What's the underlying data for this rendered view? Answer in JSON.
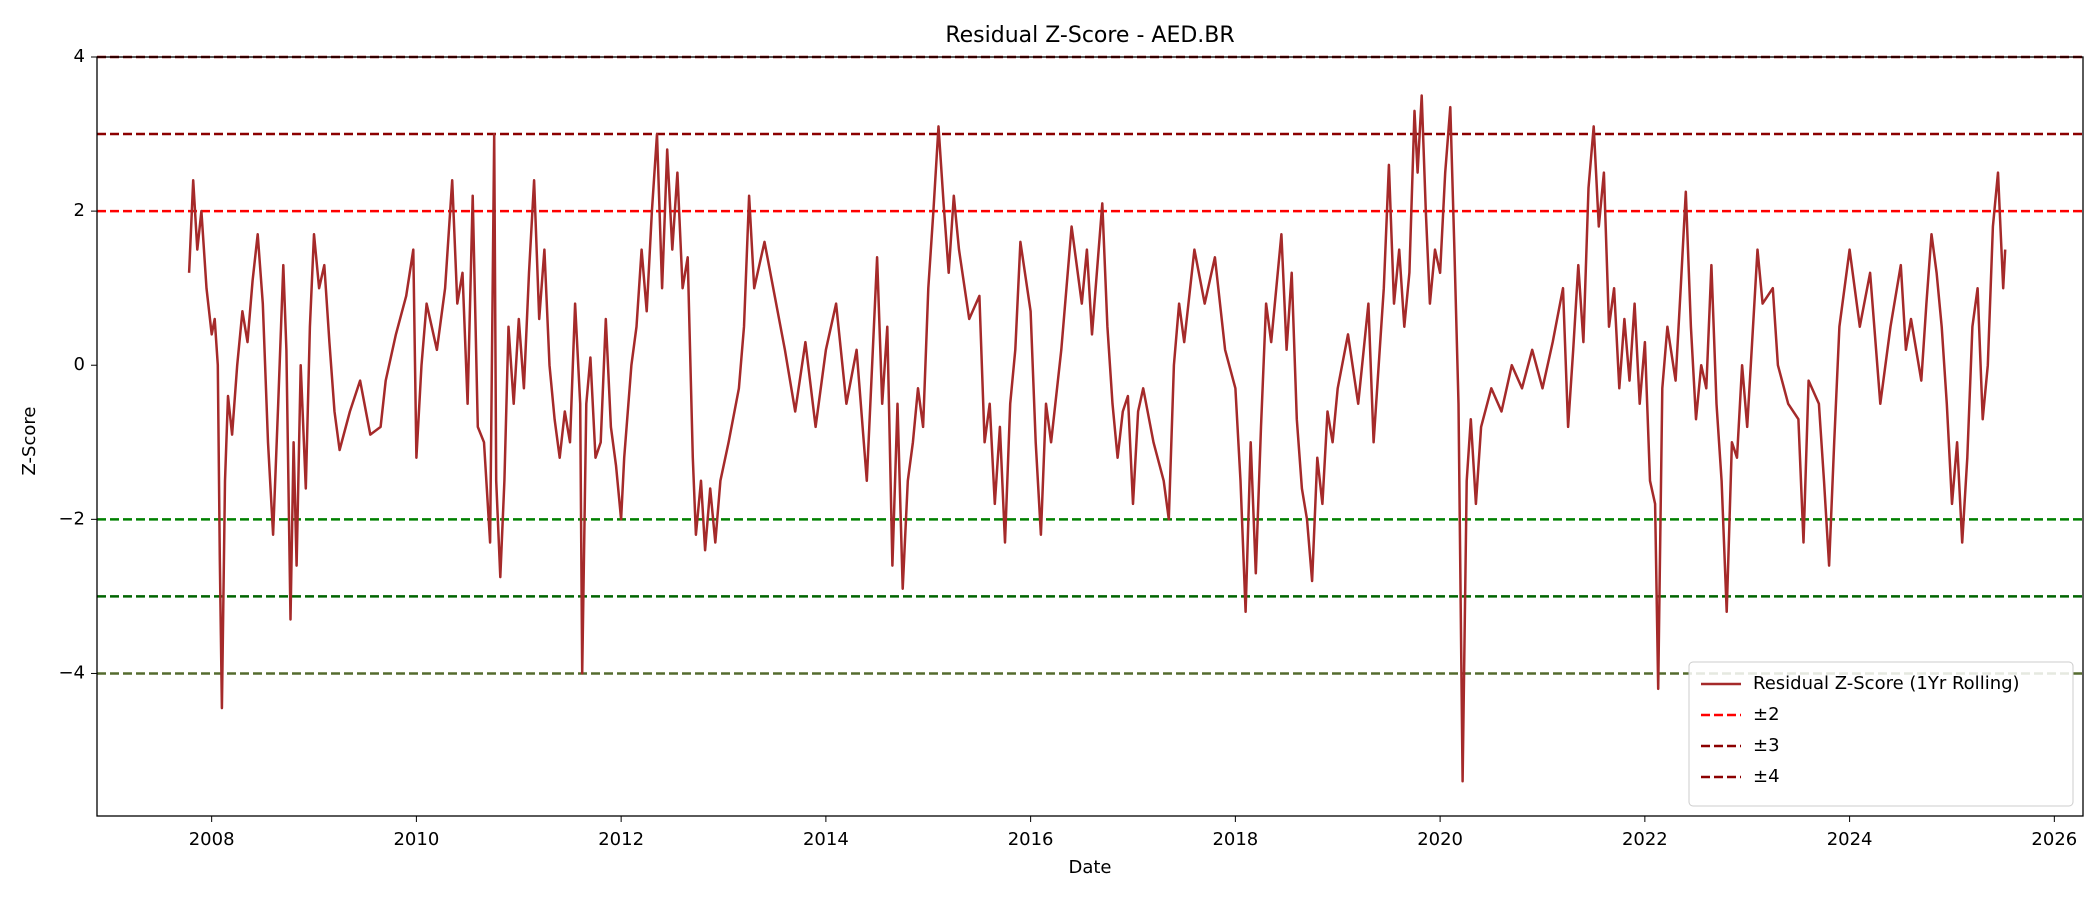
{
  "chart_data": {
    "type": "line",
    "title": "Residual Z-Score - AED.BR",
    "xlabel": "Date",
    "ylabel": "Z-Score",
    "xlim": [
      2006.88,
      2026.28
    ],
    "xticks": [
      2008,
      2010,
      2012,
      2014,
      2016,
      2018,
      2020,
      2022,
      2024,
      2026
    ],
    "ylim": [
      -5.85,
      4
    ],
    "yticks": [
      {
        "value": -4,
        "label": "−4"
      },
      {
        "value": -2,
        "label": "−2"
      },
      0,
      2,
      4
    ],
    "legend": "lower right",
    "x": [
      2007.78,
      2007.82,
      2007.86,
      2007.9,
      2007.95,
      2008.0,
      2008.03,
      2008.06,
      2008.08,
      2008.1,
      2008.13,
      2008.16,
      2008.2,
      2008.25,
      2008.3,
      2008.35,
      2008.4,
      2008.45,
      2008.5,
      2008.55,
      2008.6,
      2008.65,
      2008.7,
      2008.73,
      2008.77,
      2008.8,
      2008.83,
      2008.87,
      2008.92,
      2008.96,
      2009.0,
      2009.05,
      2009.1,
      2009.15,
      2009.2,
      2009.25,
      2009.35,
      2009.45,
      2009.55,
      2009.65,
      2009.7,
      2009.8,
      2009.9,
      2009.97,
      2010.0,
      2010.05,
      2010.1,
      2010.2,
      2010.28,
      2010.35,
      2010.4,
      2010.45,
      2010.5,
      2010.55,
      2010.6,
      2010.66,
      2010.72,
      2010.76,
      2010.78,
      2010.82,
      2010.86,
      2010.9,
      2010.95,
      2011.0,
      2011.05,
      2011.1,
      2011.15,
      2011.2,
      2011.25,
      2011.3,
      2011.35,
      2011.4,
      2011.45,
      2011.5,
      2011.55,
      2011.6,
      2011.62,
      2011.66,
      2011.7,
      2011.75,
      2011.8,
      2011.85,
      2011.9,
      2011.95,
      2012.0,
      2012.03,
      2012.1,
      2012.15,
      2012.2,
      2012.25,
      2012.3,
      2012.35,
      2012.4,
      2012.45,
      2012.5,
      2012.55,
      2012.6,
      2012.65,
      2012.7,
      2012.73,
      2012.78,
      2012.82,
      2012.87,
      2012.92,
      2012.97,
      2013.05,
      2013.15,
      2013.2,
      2013.25,
      2013.3,
      2013.4,
      2013.5,
      2013.6,
      2013.7,
      2013.8,
      2013.9,
      2014.0,
      2014.1,
      2014.2,
      2014.3,
      2014.4,
      2014.5,
      2014.55,
      2014.6,
      2014.65,
      2014.7,
      2014.75,
      2014.8,
      2014.85,
      2014.9,
      2014.95,
      2015.0,
      2015.05,
      2015.1,
      2015.15,
      2015.2,
      2015.25,
      2015.3,
      2015.4,
      2015.5,
      2015.55,
      2015.6,
      2015.65,
      2015.7,
      2015.75,
      2015.8,
      2015.85,
      2015.9,
      2016.0,
      2016.05,
      2016.1,
      2016.15,
      2016.2,
      2016.3,
      2016.4,
      2016.5,
      2016.55,
      2016.6,
      2016.7,
      2016.75,
      2016.8,
      2016.85,
      2016.9,
      2016.95,
      2017.0,
      2017.05,
      2017.1,
      2017.2,
      2017.3,
      2017.35,
      2017.4,
      2017.45,
      2017.5,
      2017.6,
      2017.7,
      2017.8,
      2017.9,
      2018.0,
      2018.05,
      2018.1,
      2018.15,
      2018.2,
      2018.25,
      2018.3,
      2018.35,
      2018.45,
      2018.5,
      2018.55,
      2018.6,
      2018.65,
      2018.7,
      2018.75,
      2018.8,
      2018.85,
      2018.9,
      2018.95,
      2019.0,
      2019.1,
      2019.2,
      2019.3,
      2019.35,
      2019.4,
      2019.45,
      2019.5,
      2019.55,
      2019.6,
      2019.65,
      2019.7,
      2019.75,
      2019.78,
      2019.82,
      2019.86,
      2019.9,
      2019.95,
      2020.0,
      2020.05,
      2020.1,
      2020.14,
      2020.18,
      2020.22,
      2020.26,
      2020.3,
      2020.35,
      2020.4,
      2020.5,
      2020.6,
      2020.7,
      2020.8,
      2020.9,
      2021.0,
      2021.1,
      2021.2,
      2021.25,
      2021.3,
      2021.35,
      2021.4,
      2021.45,
      2021.5,
      2021.55,
      2021.6,
      2021.65,
      2021.7,
      2021.75,
      2021.8,
      2021.85,
      2021.9,
      2021.95,
      2022.0,
      2022.05,
      2022.1,
      2022.13,
      2022.17,
      2022.22,
      2022.3,
      2022.35,
      2022.4,
      2022.45,
      2022.5,
      2022.55,
      2022.6,
      2022.65,
      2022.7,
      2022.75,
      2022.8,
      2022.85,
      2022.9,
      2022.95,
      2023.0,
      2023.1,
      2023.15,
      2023.25,
      2023.3,
      2023.4,
      2023.5,
      2023.55,
      2023.6,
      2023.7,
      2023.75,
      2023.8,
      2023.85,
      2023.9,
      2024.0,
      2024.1,
      2024.2,
      2024.3,
      2024.4,
      2024.5,
      2024.55,
      2024.6,
      2024.7,
      2024.75,
      2024.8,
      2024.85,
      2024.9,
      2024.95,
      2025.0,
      2025.05,
      2025.1,
      2025.15,
      2025.2,
      2025.25,
      2025.3,
      2025.35,
      2025.4,
      2025.45,
      2025.5,
      2025.52
    ],
    "series": [
      {
        "name": "Residual Z-Score (1Yr Rolling)",
        "color": "#a52a2a",
        "values": [
          1.2,
          2.4,
          1.5,
          2.0,
          1.0,
          0.4,
          0.6,
          0.0,
          -2.5,
          -4.45,
          -1.5,
          -0.4,
          -0.9,
          0.0,
          0.7,
          0.3,
          1.1,
          1.7,
          0.8,
          -1.0,
          -2.2,
          -0.5,
          1.3,
          0.2,
          -3.3,
          -1.0,
          -2.6,
          0.0,
          -1.6,
          0.5,
          1.7,
          1.0,
          1.3,
          0.3,
          -0.6,
          -1.1,
          -0.6,
          -0.2,
          -0.9,
          -0.8,
          -0.2,
          0.4,
          0.9,
          1.5,
          -1.2,
          0.0,
          0.8,
          0.2,
          1.0,
          2.4,
          0.8,
          1.2,
          -0.5,
          2.2,
          -0.8,
          -1.0,
          -2.3,
          3.0,
          -1.5,
          -2.75,
          -1.5,
          0.5,
          -0.5,
          0.6,
          -0.3,
          1.2,
          2.4,
          0.6,
          1.5,
          0.0,
          -0.7,
          -1.2,
          -0.6,
          -1.0,
          0.8,
          -0.5,
          -4.0,
          -0.5,
          0.1,
          -1.2,
          -1.0,
          0.6,
          -0.8,
          -1.3,
          -2.0,
          -1.2,
          0.0,
          0.5,
          1.5,
          0.7,
          2.0,
          3.0,
          1.0,
          2.8,
          1.5,
          2.5,
          1.0,
          1.4,
          -1.2,
          -2.2,
          -1.5,
          -2.4,
          -1.6,
          -2.3,
          -1.5,
          -1.0,
          -0.3,
          0.5,
          2.2,
          1.0,
          1.6,
          0.9,
          0.2,
          -0.6,
          0.3,
          -0.8,
          0.2,
          0.8,
          -0.5,
          0.2,
          -1.5,
          1.4,
          -0.5,
          0.5,
          -2.6,
          -0.5,
          -2.9,
          -1.5,
          -1.0,
          -0.3,
          -0.8,
          1.0,
          2.0,
          3.1,
          2.1,
          1.2,
          2.2,
          1.5,
          0.6,
          0.9,
          -1.0,
          -0.5,
          -1.8,
          -0.8,
          -2.3,
          -0.5,
          0.2,
          1.6,
          0.7,
          -1.0,
          -2.2,
          -0.5,
          -1.0,
          0.2,
          1.8,
          0.8,
          1.5,
          0.4,
          2.1,
          0.5,
          -0.5,
          -1.2,
          -0.6,
          -0.4,
          -1.8,
          -0.6,
          -0.3,
          -1.0,
          -1.5,
          -2.0,
          0.0,
          0.8,
          0.3,
          1.5,
          0.8,
          1.4,
          0.2,
          -0.3,
          -1.5,
          -3.2,
          -1.0,
          -2.7,
          -0.8,
          0.8,
          0.3,
          1.7,
          0.2,
          1.2,
          -0.7,
          -1.6,
          -2.0,
          -2.8,
          -1.2,
          -1.8,
          -0.6,
          -1.0,
          -0.3,
          0.4,
          -0.5,
          0.8,
          -1.0,
          0.0,
          1.0,
          2.6,
          0.8,
          1.5,
          0.5,
          1.2,
          3.3,
          2.5,
          3.5,
          2.0,
          0.8,
          1.5,
          1.2,
          2.5,
          3.35,
          1.5,
          -0.5,
          -5.4,
          -1.5,
          -0.7,
          -1.8,
          -0.8,
          -0.3,
          -0.6,
          0.0,
          -0.3,
          0.2,
          -0.3,
          0.3,
          1.0,
          -0.8,
          0.2,
          1.3,
          0.3,
          2.3,
          3.1,
          1.8,
          2.5,
          0.5,
          1.0,
          -0.3,
          0.6,
          -0.2,
          0.8,
          -0.5,
          0.3,
          -1.5,
          -1.8,
          -4.2,
          -0.3,
          0.5,
          -0.2,
          1.0,
          2.25,
          0.5,
          -0.7,
          0.0,
          -0.3,
          1.3,
          -0.5,
          -1.5,
          -3.2,
          -1.0,
          -1.2,
          0.0,
          -0.8,
          1.5,
          0.8,
          1.0,
          0.0,
          -0.5,
          -0.7,
          -2.3,
          -0.2,
          -0.5,
          -1.5,
          -2.6,
          -1.0,
          0.5,
          1.5,
          0.5,
          1.2,
          -0.5,
          0.5,
          1.3,
          0.2,
          0.6,
          -0.2,
          0.8,
          1.7,
          1.2,
          0.5,
          -0.5,
          -1.8,
          -1.0,
          -2.3,
          -1.2,
          0.5,
          1.0,
          -0.7,
          0.0,
          1.8,
          2.5,
          1.0,
          1.5
        ]
      }
    ],
    "thresholds": [
      {
        "name": "±2",
        "color": "#ff0000",
        "lines": [
          {
            "value": 2,
            "color": "#ff0000"
          },
          {
            "value": -2,
            "color": "#008000"
          }
        ]
      },
      {
        "name": "±3",
        "color": "#8b0000",
        "lines": [
          {
            "value": 3,
            "color": "#8b0000"
          },
          {
            "value": -3,
            "color": "#006400"
          }
        ]
      },
      {
        "name": "±4",
        "color": "#8b0000",
        "lines": [
          {
            "value": 4,
            "color": "#8b0000"
          },
          {
            "value": -4,
            "color": "#556b2f"
          }
        ]
      }
    ]
  }
}
